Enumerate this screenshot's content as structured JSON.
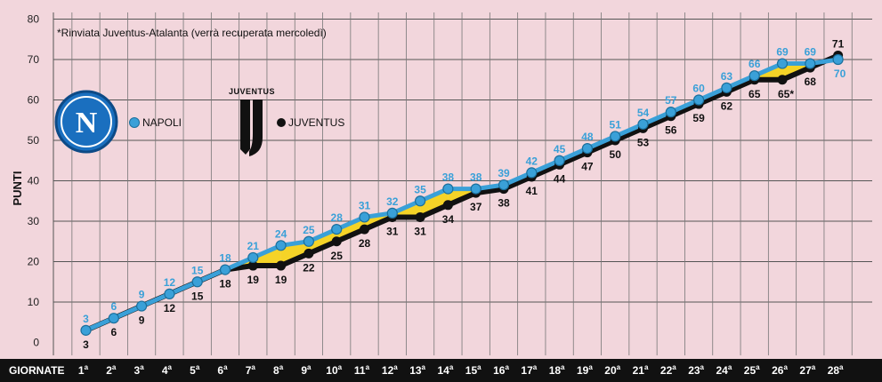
{
  "chart_data": {
    "type": "line",
    "note": "*Rinviata Juventus-Atalanta (verrà recuperata mercoledì)",
    "ylabel": "PUNTI",
    "xlabel": "GIORNATE",
    "ylim": [
      0,
      80
    ],
    "yticks": [
      0,
      10,
      20,
      30,
      40,
      50,
      60,
      70,
      80
    ],
    "grid": true,
    "categories": [
      "1",
      "2",
      "3",
      "4",
      "5",
      "6",
      "7",
      "8",
      "9",
      "10",
      "11",
      "12",
      "13",
      "14",
      "15",
      "16",
      "17",
      "18",
      "19",
      "20",
      "21",
      "22",
      "23",
      "24",
      "25",
      "26",
      "27",
      "28"
    ],
    "category_suffix": "a",
    "series": [
      {
        "name": "NAPOLI",
        "color": "#3aa0d8",
        "values": [
          3,
          6,
          9,
          12,
          15,
          18,
          21,
          24,
          25,
          28,
          31,
          32,
          35,
          38,
          38,
          39,
          42,
          45,
          48,
          51,
          54,
          57,
          60,
          63,
          66,
          69,
          69,
          70
        ],
        "labels": [
          "3",
          "6",
          "9",
          "12",
          "15",
          "18",
          "21",
          "24",
          "25",
          "28",
          "31",
          "32",
          "35",
          "38",
          "38",
          "39",
          "42",
          "45",
          "48",
          "51",
          "54",
          "57",
          "60",
          "63",
          "66",
          "69",
          "69",
          "70"
        ]
      },
      {
        "name": "JUVENTUS",
        "color": "#111111",
        "values": [
          3,
          6,
          9,
          12,
          15,
          18,
          19,
          19,
          22,
          25,
          28,
          31,
          31,
          34,
          37,
          38,
          41,
          44,
          47,
          50,
          53,
          56,
          59,
          62,
          65,
          65,
          68,
          71
        ],
        "labels": [
          "3",
          "6",
          "9",
          "12",
          "15",
          "18",
          "19",
          "19",
          "22",
          "25",
          "28",
          "31",
          "31",
          "34",
          "37",
          "38",
          "41",
          "44",
          "47",
          "50",
          "53",
          "56",
          "59",
          "62",
          "65",
          "65*",
          "68",
          "71"
        ]
      }
    ],
    "fill_colors": {
      "napoli_ahead": "#f5d327",
      "juventus_ahead": "#f5d327"
    },
    "logos": {
      "napoli": "N",
      "juventus_wordmark": "JUVENTUS"
    }
  }
}
